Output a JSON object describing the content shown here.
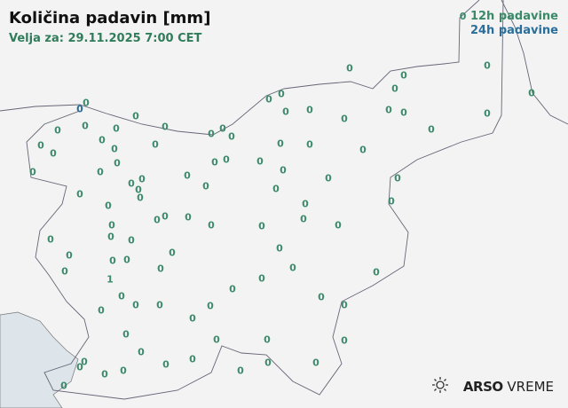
{
  "header": {
    "title": "Količina padavin [mm]",
    "valid": "Velja za: 29.11.2025 7:00 CET"
  },
  "legend": {
    "sample": "0",
    "h12": "12h padavine",
    "h24": "24h padavine",
    "color12": "#3d8a6c",
    "color24": "#2a6a96"
  },
  "logo": {
    "brand": "ARSO",
    "product": "VREME",
    "icon": "sun-icon"
  },
  "stations": {
    "h24": [
      "0"
    ],
    "h12": [
      "0",
      "0",
      "0",
      "0",
      "0",
      "0",
      "0",
      "0",
      "0",
      "0",
      "0",
      "0",
      "0",
      "0",
      "0",
      "0",
      "0",
      "0",
      "0",
      "0",
      "0",
      "0",
      "0",
      "0",
      "0",
      "0",
      "0",
      "0",
      "0",
      "0",
      "0",
      "0",
      "0",
      "0",
      "0",
      "0",
      "0",
      "0",
      "0",
      "0",
      "0",
      "0",
      "0",
      "0",
      "0",
      "0",
      "0",
      "0",
      "0",
      "0",
      "0",
      "0",
      "0",
      "0",
      "0",
      "0",
      "0",
      "0",
      "0",
      "0",
      "0",
      "0",
      "0",
      "0",
      "0",
      "1",
      "0",
      "0",
      "0",
      "0",
      "0",
      "0",
      "0",
      "0",
      "0",
      "0",
      "0",
      "0",
      "0",
      "0",
      "0",
      "0",
      "0",
      "0",
      "0",
      "0",
      "0",
      "0",
      "0",
      "0",
      "0",
      "0",
      "0",
      "0",
      "0",
      "0",
      "0"
    ]
  }
}
